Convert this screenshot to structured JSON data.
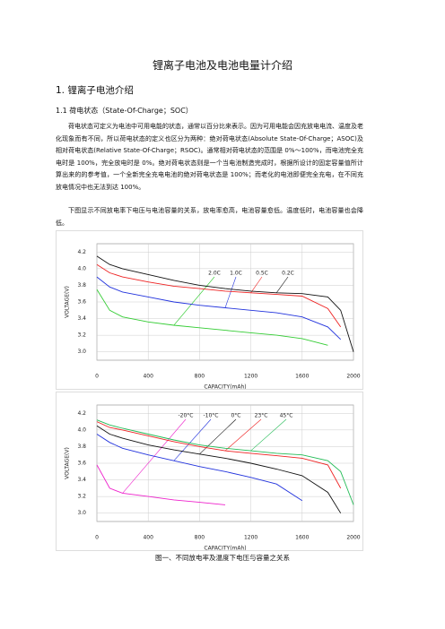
{
  "document": {
    "title": "锂离子电池及电池电量计介绍",
    "heading": "1.  锂离子电池介绍",
    "subheading": "1.1 荷电状态（State-Of-Charge；SOC）",
    "paragraphs": [
      "荷电状态可定义为电池中可用电能的状态，通常以百分比来表示。因为可用电能会因充放电电流、温度及老化现象而有不同，所以荷电状态的定义也区分为两种：绝对荷电状态(Absolute State-Of-Charge；ASOC)及相对荷电状态(Relative State-Of-Charge；RSOC)。通常相对荷电状态的范围是 0%～100%，而电池完全充电时是 100%，完全放电时是 0%。绝对荷电状态则是一个当电池制造完成时，根据所设计的固定容量值所计算出来的的参考值，一个全新完全充电电池的绝对荷电状态是 100%；而老化的电池即便完全充电，在不同充放电情况中也无法到达 100%。",
      "下图显示不同放电率下电压与电池容量的关系，放电率愈高，电池容量愈低。温度低时，电池容量也会降低。"
    ],
    "caption": "图一、不同放电率及温度下电压与容量之关系"
  },
  "chart_data": [
    {
      "type": "line",
      "xlabel": "CAPACITY(mAh)",
      "ylabel": "VOLTAGE(V)",
      "x": [
        0,
        100,
        200,
        400,
        600,
        800,
        1000,
        1200,
        1400,
        1600,
        1800,
        1900,
        2000
      ],
      "xlim": [
        0,
        2000
      ],
      "xticks": [
        0,
        400,
        800,
        1200,
        1600,
        2000
      ],
      "ylim": [
        2.9,
        4.3
      ],
      "yticks": [
        {
          "value": 3,
          "label": "3.0"
        },
        3.2,
        3.4,
        3.6,
        3.8,
        {
          "value": 4,
          "label": "4.0"
        },
        4.2
      ],
      "grid": true,
      "series": [
        {
          "name": "2.0C",
          "color": "#33cc33",
          "values": [
            3.75,
            3.5,
            3.42,
            3.36,
            3.32,
            3.29,
            3.26,
            3.23,
            3.2,
            3.16,
            3.08,
            null,
            null
          ]
        },
        {
          "name": "1.0C",
          "color": "#2233dd",
          "values": [
            3.9,
            3.78,
            3.72,
            3.66,
            3.6,
            3.56,
            3.53,
            3.5,
            3.47,
            3.42,
            3.3,
            3.15,
            null
          ]
        },
        {
          "name": "0.5C",
          "color": "#ee2222",
          "values": [
            4.05,
            3.95,
            3.9,
            3.84,
            3.79,
            3.76,
            3.73,
            3.71,
            3.69,
            3.67,
            3.52,
            3.3,
            null
          ]
        },
        {
          "name": "0.2C",
          "color": "#111111",
          "values": [
            4.15,
            4.05,
            4.0,
            3.93,
            3.86,
            3.8,
            3.76,
            3.73,
            3.71,
            3.7,
            3.66,
            3.5,
            3.0
          ]
        }
      ]
    },
    {
      "type": "line",
      "xlabel": "CAPACITY(mAh)",
      "ylabel": "VOLTAGE(V)",
      "x": [
        0,
        100,
        200,
        400,
        600,
        800,
        1000,
        1200,
        1400,
        1600,
        1800,
        1900,
        2000
      ],
      "xlim": [
        0,
        2000
      ],
      "xticks": [
        0,
        400,
        800,
        1200,
        1600,
        2000
      ],
      "ylim": [
        2.9,
        4.3
      ],
      "yticks": [
        {
          "value": 3,
          "label": "3.0"
        },
        3.2,
        3.4,
        3.6,
        3.8,
        {
          "value": 4,
          "label": "4.0"
        },
        4.2
      ],
      "grid": true,
      "series": [
        {
          "name": "-20°C",
          "color": "#ee22cc",
          "values": [
            3.58,
            3.3,
            3.24,
            3.2,
            3.16,
            3.13,
            3.1,
            null,
            null,
            null,
            null,
            null,
            null
          ]
        },
        {
          "name": "-10°C",
          "color": "#2233dd",
          "values": [
            3.95,
            3.85,
            3.78,
            3.7,
            3.63,
            3.56,
            3.5,
            3.43,
            3.35,
            3.15,
            null,
            null,
            null
          ]
        },
        {
          "name": "0°C",
          "color": "#111111",
          "values": [
            4.05,
            3.95,
            3.9,
            3.82,
            3.76,
            3.71,
            3.66,
            3.6,
            3.53,
            3.45,
            3.25,
            3.0,
            null
          ]
        },
        {
          "name": "23°C",
          "color": "#ee2222",
          "values": [
            4.1,
            4.03,
            4.0,
            3.93,
            3.86,
            3.8,
            3.75,
            3.72,
            3.69,
            3.66,
            3.58,
            3.3,
            null
          ]
        },
        {
          "name": "45°C",
          "color": "#22bb55",
          "values": [
            4.12,
            4.06,
            4.02,
            3.95,
            3.88,
            3.82,
            3.78,
            3.75,
            3.72,
            3.7,
            3.63,
            3.5,
            3.1
          ]
        }
      ]
    }
  ]
}
